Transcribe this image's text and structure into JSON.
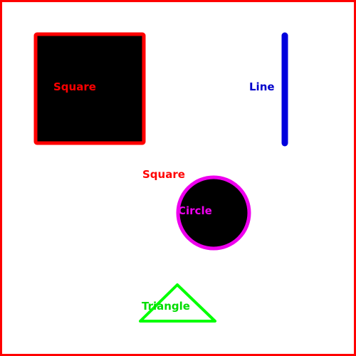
{
  "frame": {
    "stroke_color": "#ff0000"
  },
  "square": {
    "label": "Square",
    "fill_color": "#000000",
    "stroke_color": "#ff0000",
    "label_color": "#ff0000"
  },
  "line": {
    "label": "Line",
    "stroke_color": "#0000dd",
    "label_color": "#0000cc"
  },
  "floating_label": {
    "text": "Square",
    "color": "#ff0000"
  },
  "circle": {
    "label": "Circle",
    "fill_color": "#000000",
    "stroke_color": "#ee00ee",
    "label_color": "#ee00ee"
  },
  "triangle": {
    "label": "Triangle",
    "fill_color": "#ffffff",
    "stroke_color": "#00ff00",
    "label_color": "#00dd00"
  }
}
